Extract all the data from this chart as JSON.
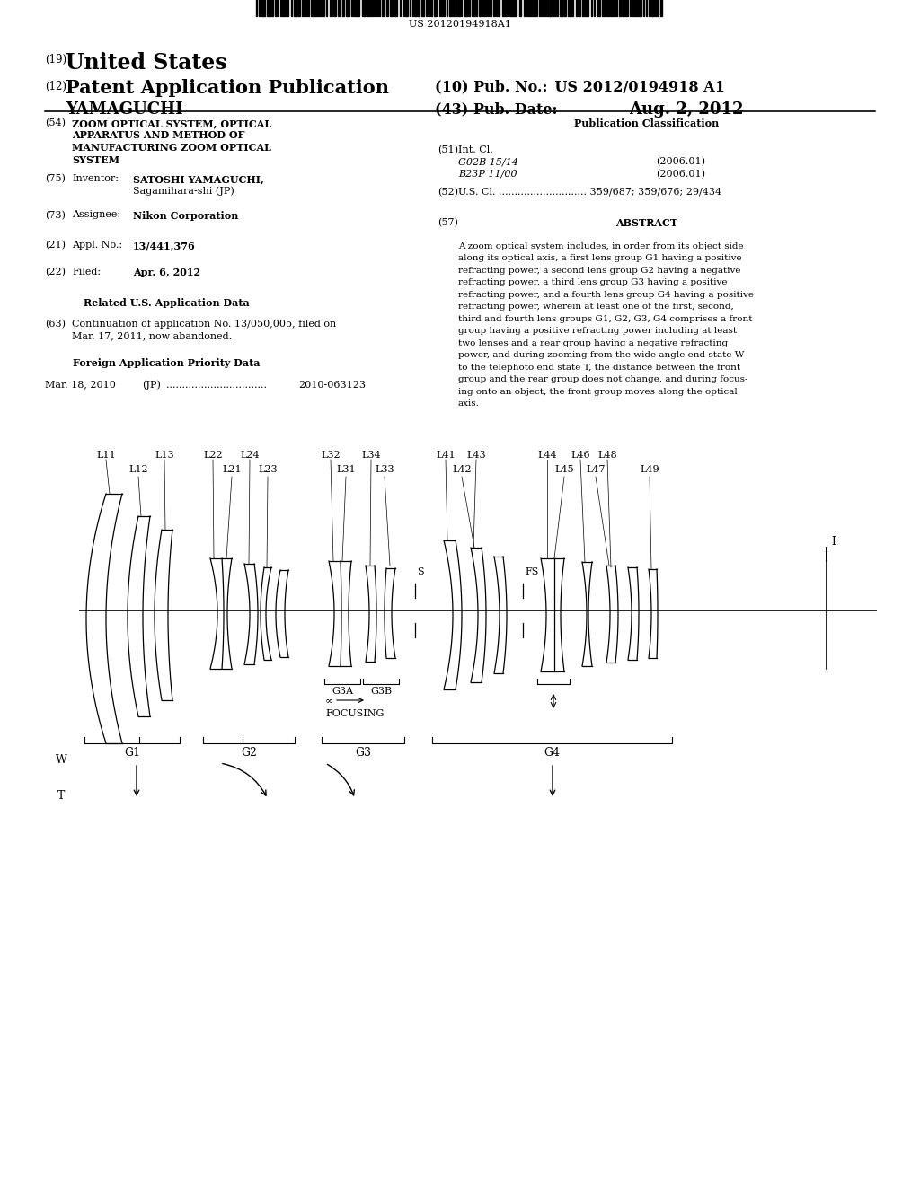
{
  "bg_color": "#ffffff",
  "barcode_text": "US 20120194918A1",
  "pub_no_label": "(10) Pub. No.:",
  "pub_no_value": "US 2012/0194918 A1",
  "pub_date_label": "(43) Pub. Date:",
  "pub_date_value": "Aug. 2, 2012",
  "abstract_text": "A zoom optical system includes, in order from its object side along its optical axis, a first lens group G1 having a positive refracting power, a second lens group G2 having a negative refracting power, a third lens group G3 having a positive refracting power, and a fourth lens group G4 having a positive refracting power, wherein at least one of the first, second, third and fourth lens groups G1, G2, G3, G4 comprises a front group having a positive refracting power including at least two lenses and a rear group having a negative refracting power, and during zooming from the wide angle end state W to the telephoto end state T, the distance between the front group and the rear group does not change, and during focus-ing onto an object, the front group moves along the optical axis."
}
